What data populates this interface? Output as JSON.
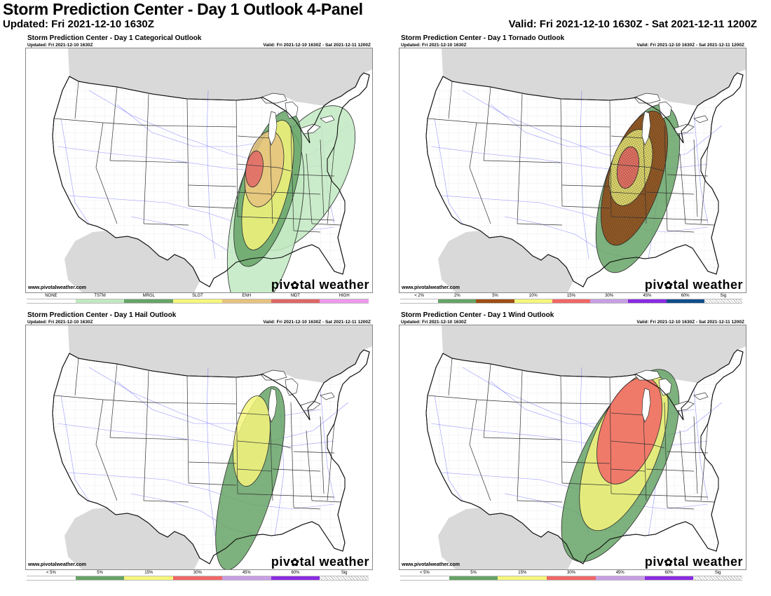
{
  "header": {
    "title": "Storm Prediction Center - Day 1 Outlook 4-Panel",
    "updated": "Updated: Fri 2021-12-10 1630Z",
    "valid": "Valid: Fri 2021-12-10 1630Z - Sat 2021-12-11 1200Z"
  },
  "panels": [
    {
      "title": "Storm Prediction Center - Day 1 Categorical Outlook",
      "updated": "Updated: Fri 2021-12-10 1630Z",
      "valid": "Valid: Fri 2021-12-10 1630Z - Sat 2021-12-11 1200Z",
      "site": "www.pivotalweather.com",
      "brand_left": "piv",
      "brand_flake": "✿",
      "brand_right": "tal weather",
      "legend": [
        {
          "label": "NONE",
          "color": "#ffffff"
        },
        {
          "label": "TSTM",
          "color": "#c1e9c1"
        },
        {
          "label": "MRGL",
          "color": "#66a366"
        },
        {
          "label": "SLGT",
          "color": "#f6f67b"
        },
        {
          "label": "ENH",
          "color": "#e6c27f"
        },
        {
          "label": "MDT",
          "color": "#e06666"
        },
        {
          "label": "HIGH",
          "color": "#ee99ee"
        }
      ]
    },
    {
      "title": "Storm Prediction Center - Day 1 Tornado Outlook",
      "updated": "Updated: Fri 2021-12-10 1630Z",
      "valid": "Valid: Fri 2021-12-10 1630Z - Sat 2021-12-11 1200Z",
      "site": "www.pivotalweather.com",
      "brand_left": "piv",
      "brand_flake": "✿",
      "brand_right": "tal weather",
      "legend": [
        {
          "label": "< 2%",
          "color": "#ffffff"
        },
        {
          "label": "2%",
          "color": "#66a366"
        },
        {
          "label": "5%",
          "color": "#9d4e15"
        },
        {
          "label": "10%",
          "color": "#f6f67b"
        },
        {
          "label": "15%",
          "color": "#f26666"
        },
        {
          "label": "30%",
          "color": "#c89ee6"
        },
        {
          "label": "45%",
          "color": "#8a2be2"
        },
        {
          "label": "60%",
          "color": "#104e8b"
        },
        {
          "label": "Sig",
          "color": "hatch"
        }
      ]
    },
    {
      "title": "Storm Prediction Center - Day 1 Hail Outlook",
      "updated": "Updated: Fri 2021-12-10 1630Z",
      "valid": "Valid: Fri 2021-12-10 1630Z - Sat 2021-12-11 1200Z",
      "site": "www.pivotalweather.com",
      "brand_left": "piv",
      "brand_flake": "✿",
      "brand_right": "tal weather",
      "legend": [
        {
          "label": "< 5%",
          "color": "#ffffff"
        },
        {
          "label": "5%",
          "color": "#66a366"
        },
        {
          "label": "15%",
          "color": "#f6f67b"
        },
        {
          "label": "30%",
          "color": "#f26666"
        },
        {
          "label": "45%",
          "color": "#c89ee6"
        },
        {
          "label": "60%",
          "color": "#8a2be2"
        },
        {
          "label": "Sig",
          "color": "hatch"
        }
      ]
    },
    {
      "title": "Storm Prediction Center - Day 1 Wind Outlook",
      "updated": "Updated: Fri 2021-12-10 1630Z",
      "valid": "Valid: Fri 2021-12-10 1630Z - Sat 2021-12-11 1200Z",
      "site": "www.pivotalweather.com",
      "brand_left": "piv",
      "brand_flake": "✿",
      "brand_right": "tal weather",
      "legend": [
        {
          "label": "< 5%",
          "color": "#ffffff"
        },
        {
          "label": "5%",
          "color": "#66a366"
        },
        {
          "label": "15%",
          "color": "#f6f67b"
        },
        {
          "label": "30%",
          "color": "#f26666"
        },
        {
          "label": "45%",
          "color": "#c89ee6"
        },
        {
          "label": "60%",
          "color": "#8a2be2"
        },
        {
          "label": "Sig",
          "color": "hatch"
        }
      ]
    }
  ]
}
